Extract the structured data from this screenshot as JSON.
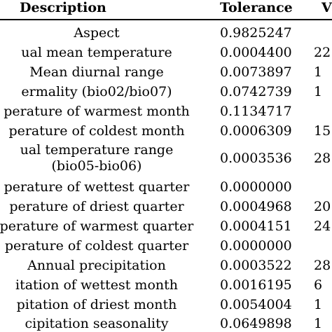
{
  "table": {
    "headers": {
      "description": "Description",
      "tolerance": "Tolerance",
      "value": "V"
    },
    "rows": [
      {
        "description": "Aspect",
        "tolerance": "0.9825247",
        "value": ""
      },
      {
        "description": "ual mean temperature",
        "tolerance": "0.0004400",
        "value": "22"
      },
      {
        "description": "Mean diurnal range",
        "tolerance": "0.0073897",
        "value": "1"
      },
      {
        "description": "ermality (bio02/bio07)",
        "tolerance": "0.0742739",
        "value": "1"
      },
      {
        "description": "perature of warmest month",
        "tolerance": "0.1134717",
        "value": ""
      },
      {
        "description": "perature of coldest month",
        "tolerance": "0.0006309",
        "value": "15"
      },
      {
        "description": "ual temperature range",
        "description2": "(bio05-bio06)",
        "tolerance": "0.0003536",
        "value": "28"
      },
      {
        "description": "perature of wettest quarter",
        "tolerance": "0.0000000",
        "value": ""
      },
      {
        "description": "perature of driest quarter",
        "tolerance": "0.0004968",
        "value": "20"
      },
      {
        "description": "perature of warmest quarter",
        "tolerance": "0.0004151",
        "value": "24"
      },
      {
        "description": "perature of coldest quarter",
        "tolerance": "0.0000000",
        "value": ""
      },
      {
        "description": "Annual precipitation",
        "tolerance": "0.0003522",
        "value": "28"
      },
      {
        "description": "itation of wettest month",
        "tolerance": "0.0016195",
        "value": "6"
      },
      {
        "description": "pitation of driest month",
        "tolerance": "0.0054004",
        "value": "1"
      },
      {
        "description": "cipitation seasonality",
        "tolerance": "0.0649898",
        "value": "1"
      }
    ]
  }
}
